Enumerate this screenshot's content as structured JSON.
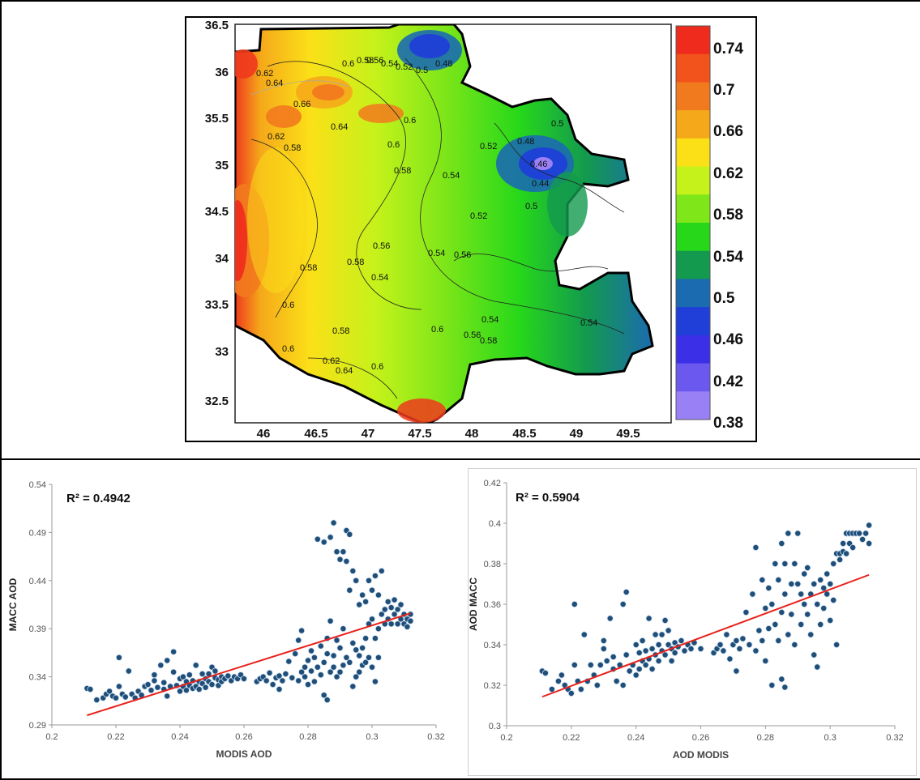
{
  "map": {
    "x_ticks": [
      "46",
      "46.5",
      "47",
      "47.5",
      "48",
      "48.5",
      "49",
      "49.5"
    ],
    "y_ticks": [
      "36.5",
      "36",
      "35.5",
      "35",
      "34.5",
      "34",
      "33.5",
      "33",
      "32.5"
    ],
    "contour_labels": [
      "0.62",
      "0.64",
      "0.6",
      "0.58",
      "0.56",
      "0.54",
      "0.52",
      "0.5",
      "0.48",
      "0.66",
      "0.62",
      "0.64",
      "0.6",
      "0.58",
      "0.6",
      "0.58",
      "0.52",
      "0.54",
      "0.5",
      "0.48",
      "0.46",
      "0.44",
      "0.5",
      "0.52",
      "0.56",
      "0.54",
      "0.56",
      "0.58",
      "0.54",
      "0.58",
      "0.6",
      "0.58",
      "0.54",
      "0.56",
      "0.58",
      "0.54",
      "0.6",
      "0.62",
      "0.64",
      "0.6",
      "0.6"
    ],
    "colorbar": {
      "labels": [
        "0.74",
        "0.7",
        "0.66",
        "0.62",
        "0.58",
        "0.54",
        "0.5",
        "0.46",
        "0.42",
        "0.38"
      ],
      "colors": [
        "#ef2b1d",
        "#f2521b",
        "#f27a1e",
        "#f5a81a",
        "#fbe018",
        "#c4f21a",
        "#7ee619",
        "#27d81a",
        "#139a4e",
        "#1b6bb0",
        "#1f3fd8",
        "#3b30e8",
        "#6b58ef",
        "#9a80f5"
      ]
    }
  },
  "chart_data": [
    {
      "type": "scatter",
      "annotation": "R² = 0.4942",
      "xlabel": "MODIS AOD",
      "ylabel": "MACC AOD",
      "xlim": [
        0.2,
        0.32
      ],
      "ylim": [
        0.29,
        0.54
      ],
      "x_ticks": [
        "0.2",
        "0.22",
        "0.24",
        "0.26",
        "0.28",
        "0.3",
        "0.32"
      ],
      "y_ticks": [
        "0.29",
        "0.34",
        "0.39",
        "0.44",
        "0.49",
        "0.54"
      ],
      "trendline": {
        "x": [
          0.211,
          0.312
        ],
        "y": [
          0.3,
          0.406
        ],
        "color": "#e8221b"
      },
      "points": [
        [
          0.211,
          0.328
        ],
        [
          0.212,
          0.327
        ],
        [
          0.214,
          0.316
        ],
        [
          0.216,
          0.318
        ],
        [
          0.217,
          0.322
        ],
        [
          0.218,
          0.325
        ],
        [
          0.219,
          0.32
        ],
        [
          0.22,
          0.318
        ],
        [
          0.221,
          0.36
        ],
        [
          0.221,
          0.33
        ],
        [
          0.222,
          0.322
        ],
        [
          0.223,
          0.319
        ],
        [
          0.224,
          0.346
        ],
        [
          0.225,
          0.322
        ],
        [
          0.226,
          0.318
        ],
        [
          0.227,
          0.325
        ],
        [
          0.228,
          0.321
        ],
        [
          0.229,
          0.33
        ],
        [
          0.23,
          0.332
        ],
        [
          0.231,
          0.326
        ],
        [
          0.232,
          0.336
        ],
        [
          0.232,
          0.342
        ],
        [
          0.233,
          0.329
        ],
        [
          0.234,
          0.352
        ],
        [
          0.235,
          0.327
        ],
        [
          0.235,
          0.334
        ],
        [
          0.236,
          0.357
        ],
        [
          0.236,
          0.32
        ],
        [
          0.237,
          0.33
        ],
        [
          0.238,
          0.366
        ],
        [
          0.238,
          0.345
        ],
        [
          0.239,
          0.331
        ],
        [
          0.24,
          0.338
        ],
        [
          0.24,
          0.325
        ],
        [
          0.241,
          0.34
        ],
        [
          0.241,
          0.33
        ],
        [
          0.242,
          0.335
        ],
        [
          0.242,
          0.326
        ],
        [
          0.243,
          0.331
        ],
        [
          0.243,
          0.342
        ],
        [
          0.244,
          0.328
        ],
        [
          0.244,
          0.336
        ],
        [
          0.245,
          0.352
        ],
        [
          0.245,
          0.33
        ],
        [
          0.246,
          0.335
        ],
        [
          0.246,
          0.327
        ],
        [
          0.247,
          0.333
        ],
        [
          0.247,
          0.343
        ],
        [
          0.248,
          0.329
        ],
        [
          0.248,
          0.338
        ],
        [
          0.249,
          0.335
        ],
        [
          0.249,
          0.343
        ],
        [
          0.25,
          0.35
        ],
        [
          0.25,
          0.332
        ],
        [
          0.251,
          0.339
        ],
        [
          0.251,
          0.346
        ],
        [
          0.252,
          0.337
        ],
        [
          0.252,
          0.331
        ],
        [
          0.253,
          0.34
        ],
        [
          0.253,
          0.335
        ],
        [
          0.254,
          0.338
        ],
        [
          0.255,
          0.341
        ],
        [
          0.256,
          0.336
        ],
        [
          0.257,
          0.34
        ],
        [
          0.258,
          0.338
        ],
        [
          0.259,
          0.342
        ],
        [
          0.26,
          0.338
        ],
        [
          0.264,
          0.335
        ],
        [
          0.265,
          0.338
        ],
        [
          0.266,
          0.34
        ],
        [
          0.267,
          0.336
        ],
        [
          0.268,
          0.344
        ],
        [
          0.269,
          0.332
        ],
        [
          0.27,
          0.339
        ],
        [
          0.271,
          0.341
        ],
        [
          0.271,
          0.327
        ],
        [
          0.272,
          0.336
        ],
        [
          0.273,
          0.343
        ],
        [
          0.274,
          0.356
        ],
        [
          0.275,
          0.339
        ],
        [
          0.276,
          0.364
        ],
        [
          0.277,
          0.336
        ],
        [
          0.277,
          0.378
        ],
        [
          0.278,
          0.345
        ],
        [
          0.278,
          0.388
        ],
        [
          0.279,
          0.35
        ],
        [
          0.279,
          0.34
        ],
        [
          0.28,
          0.357
        ],
        [
          0.28,
          0.332
        ],
        [
          0.281,
          0.367
        ],
        [
          0.281,
          0.346
        ],
        [
          0.282,
          0.335
        ],
        [
          0.282,
          0.36
        ],
        [
          0.283,
          0.483
        ],
        [
          0.283,
          0.35
        ],
        [
          0.284,
          0.372
        ],
        [
          0.284,
          0.342
        ],
        [
          0.285,
          0.48
        ],
        [
          0.285,
          0.321
        ],
        [
          0.285,
          0.355
        ],
        [
          0.286,
          0.364
        ],
        [
          0.286,
          0.316
        ],
        [
          0.286,
          0.38
        ],
        [
          0.287,
          0.485
        ],
        [
          0.287,
          0.345
        ],
        [
          0.287,
          0.398
        ],
        [
          0.288,
          0.5
        ],
        [
          0.288,
          0.35
        ],
        [
          0.288,
          0.362
        ],
        [
          0.289,
          0.47
        ],
        [
          0.289,
          0.34
        ],
        [
          0.289,
          0.378
        ],
        [
          0.29,
          0.462
        ],
        [
          0.29,
          0.37
        ],
        [
          0.29,
          0.345
        ],
        [
          0.291,
          0.47
        ],
        [
          0.291,
          0.39
        ],
        [
          0.291,
          0.352
        ],
        [
          0.292,
          0.492
        ],
        [
          0.292,
          0.46
        ],
        [
          0.292,
          0.36
        ],
        [
          0.293,
          0.488
        ],
        [
          0.293,
          0.43
        ],
        [
          0.293,
          0.355
        ],
        [
          0.294,
          0.45
        ],
        [
          0.294,
          0.375
        ],
        [
          0.294,
          0.33
        ],
        [
          0.295,
          0.44
        ],
        [
          0.295,
          0.368
        ],
        [
          0.295,
          0.34
        ],
        [
          0.296,
          0.415
        ],
        [
          0.296,
          0.362
        ],
        [
          0.296,
          0.345
        ],
        [
          0.297,
          0.425
        ],
        [
          0.297,
          0.37
        ],
        [
          0.297,
          0.352
        ],
        [
          0.298,
          0.418
        ],
        [
          0.298,
          0.38
        ],
        [
          0.298,
          0.355
        ],
        [
          0.299,
          0.44
        ],
        [
          0.299,
          0.395
        ],
        [
          0.299,
          0.36
        ],
        [
          0.3,
          0.43
        ],
        [
          0.3,
          0.4
        ],
        [
          0.3,
          0.35
        ],
        [
          0.301,
          0.445
        ],
        [
          0.301,
          0.38
        ],
        [
          0.301,
          0.335
        ],
        [
          0.302,
          0.425
        ],
        [
          0.302,
          0.39
        ],
        [
          0.302,
          0.36
        ],
        [
          0.303,
          0.45
        ],
        [
          0.303,
          0.405
        ],
        [
          0.304,
          0.41
        ],
        [
          0.304,
          0.395
        ],
        [
          0.305,
          0.418
        ],
        [
          0.305,
          0.4
        ],
        [
          0.306,
          0.412
        ],
        [
          0.306,
          0.395
        ],
        [
          0.307,
          0.405
        ],
        [
          0.307,
          0.42
        ],
        [
          0.308,
          0.41
        ],
        [
          0.308,
          0.395
        ],
        [
          0.309,
          0.4
        ],
        [
          0.309,
          0.415
        ],
        [
          0.31,
          0.405
        ],
        [
          0.31,
          0.395
        ],
        [
          0.311,
          0.4
        ],
        [
          0.311,
          0.392
        ],
        [
          0.312,
          0.405
        ],
        [
          0.312,
          0.398
        ]
      ]
    },
    {
      "type": "scatter",
      "annotation": "R² = 0.5904",
      "xlabel": "AOD MODIS",
      "ylabel": "AOD MACC",
      "xlim": [
        0.2,
        0.32
      ],
      "ylim": [
        0.3,
        0.42
      ],
      "x_ticks": [
        "0.2",
        "0.22",
        "0.24",
        "0.26",
        "0.28",
        "0.3",
        "0.32"
      ],
      "y_ticks": [
        "0.3",
        "0.32",
        "0.34",
        "0.36",
        "0.38",
        "0.4",
        "0.42"
      ],
      "trendline": {
        "x": [
          0.211,
          0.312
        ],
        "y": [
          0.3143,
          0.3745
        ],
        "color": "#e8221b"
      },
      "points": [
        [
          0.211,
          0.327
        ],
        [
          0.212,
          0.326
        ],
        [
          0.214,
          0.318
        ],
        [
          0.216,
          0.322
        ],
        [
          0.217,
          0.325
        ],
        [
          0.218,
          0.32
        ],
        [
          0.219,
          0.318
        ],
        [
          0.22,
          0.316
        ],
        [
          0.221,
          0.36
        ],
        [
          0.221,
          0.33
        ],
        [
          0.222,
          0.322
        ],
        [
          0.223,
          0.318
        ],
        [
          0.224,
          0.345
        ],
        [
          0.225,
          0.322
        ],
        [
          0.226,
          0.33
        ],
        [
          0.227,
          0.325
        ],
        [
          0.228,
          0.32
        ],
        [
          0.229,
          0.33
        ],
        [
          0.23,
          0.338
        ],
        [
          0.23,
          0.342
        ],
        [
          0.231,
          0.332
        ],
        [
          0.232,
          0.353
        ],
        [
          0.233,
          0.328
        ],
        [
          0.233,
          0.334
        ],
        [
          0.234,
          0.322
        ],
        [
          0.235,
          0.33
        ],
        [
          0.236,
          0.36
        ],
        [
          0.236,
          0.32
        ],
        [
          0.237,
          0.366
        ],
        [
          0.237,
          0.335
        ],
        [
          0.238,
          0.327
        ],
        [
          0.239,
          0.33
        ],
        [
          0.24,
          0.34
        ],
        [
          0.24,
          0.325
        ],
        [
          0.241,
          0.336
        ],
        [
          0.241,
          0.328
        ],
        [
          0.242,
          0.332
        ],
        [
          0.242,
          0.342
        ],
        [
          0.243,
          0.33
        ],
        [
          0.243,
          0.337
        ],
        [
          0.244,
          0.353
        ],
        [
          0.244,
          0.333
        ],
        [
          0.245,
          0.338
        ],
        [
          0.245,
          0.328
        ],
        [
          0.246,
          0.335
        ],
        [
          0.246,
          0.345
        ],
        [
          0.247,
          0.332
        ],
        [
          0.247,
          0.34
        ],
        [
          0.248,
          0.337
        ],
        [
          0.248,
          0.345
        ],
        [
          0.249,
          0.352
        ],
        [
          0.249,
          0.335
        ],
        [
          0.25,
          0.34
        ],
        [
          0.25,
          0.347
        ],
        [
          0.251,
          0.338
        ],
        [
          0.251,
          0.332
        ],
        [
          0.252,
          0.341
        ],
        [
          0.252,
          0.336
        ],
        [
          0.253,
          0.339
        ],
        [
          0.254,
          0.342
        ],
        [
          0.255,
          0.337
        ],
        [
          0.256,
          0.34
        ],
        [
          0.257,
          0.338
        ],
        [
          0.258,
          0.341
        ],
        [
          0.26,
          0.338
        ],
        [
          0.264,
          0.336
        ],
        [
          0.265,
          0.338
        ],
        [
          0.266,
          0.34
        ],
        [
          0.267,
          0.337
        ],
        [
          0.268,
          0.345
        ],
        [
          0.269,
          0.333
        ],
        [
          0.27,
          0.34
        ],
        [
          0.271,
          0.342
        ],
        [
          0.271,
          0.327
        ],
        [
          0.272,
          0.338
        ],
        [
          0.273,
          0.343
        ],
        [
          0.274,
          0.356
        ],
        [
          0.275,
          0.34
        ],
        [
          0.276,
          0.365
        ],
        [
          0.277,
          0.337
        ],
        [
          0.277,
          0.388
        ],
        [
          0.278,
          0.347
        ],
        [
          0.279,
          0.372
        ],
        [
          0.279,
          0.342
        ],
        [
          0.28,
          0.358
        ],
        [
          0.28,
          0.332
        ],
        [
          0.281,
          0.368
        ],
        [
          0.281,
          0.348
        ],
        [
          0.282,
          0.32
        ],
        [
          0.282,
          0.36
        ],
        [
          0.283,
          0.38
        ],
        [
          0.283,
          0.35
        ],
        [
          0.284,
          0.372
        ],
        [
          0.284,
          0.342
        ],
        [
          0.285,
          0.39
        ],
        [
          0.285,
          0.323
        ],
        [
          0.285,
          0.356
        ],
        [
          0.286,
          0.365
        ],
        [
          0.286,
          0.319
        ],
        [
          0.286,
          0.38
        ],
        [
          0.287,
          0.395
        ],
        [
          0.287,
          0.345
        ],
        [
          0.288,
          0.355
        ],
        [
          0.288,
          0.37
        ],
        [
          0.289,
          0.38
        ],
        [
          0.289,
          0.34
        ],
        [
          0.29,
          0.395
        ],
        [
          0.29,
          0.37
        ],
        [
          0.291,
          0.365
        ],
        [
          0.291,
          0.35
        ],
        [
          0.292,
          0.375
        ],
        [
          0.292,
          0.36
        ],
        [
          0.293,
          0.378
        ],
        [
          0.293,
          0.355
        ],
        [
          0.294,
          0.365
        ],
        [
          0.294,
          0.345
        ],
        [
          0.295,
          0.37
        ],
        [
          0.295,
          0.335
        ],
        [
          0.296,
          0.36
        ],
        [
          0.296,
          0.329
        ],
        [
          0.297,
          0.372
        ],
        [
          0.297,
          0.35
        ],
        [
          0.298,
          0.368
        ],
        [
          0.298,
          0.358
        ],
        [
          0.299,
          0.365
        ],
        [
          0.299,
          0.375
        ],
        [
          0.3,
          0.352
        ],
        [
          0.3,
          0.37
        ],
        [
          0.301,
          0.38
        ],
        [
          0.301,
          0.362
        ],
        [
          0.302,
          0.385
        ],
        [
          0.302,
          0.34
        ],
        [
          0.303,
          0.385
        ],
        [
          0.303,
          0.382
        ],
        [
          0.304,
          0.39
        ],
        [
          0.304,
          0.386
        ],
        [
          0.305,
          0.395
        ],
        [
          0.305,
          0.385
        ],
        [
          0.306,
          0.39
        ],
        [
          0.306,
          0.395
        ],
        [
          0.307,
          0.395
        ],
        [
          0.307,
          0.388
        ],
        [
          0.308,
          0.395
        ],
        [
          0.309,
          0.395
        ],
        [
          0.31,
          0.392
        ],
        [
          0.311,
          0.395
        ],
        [
          0.312,
          0.399
        ],
        [
          0.312,
          0.39
        ]
      ]
    }
  ]
}
